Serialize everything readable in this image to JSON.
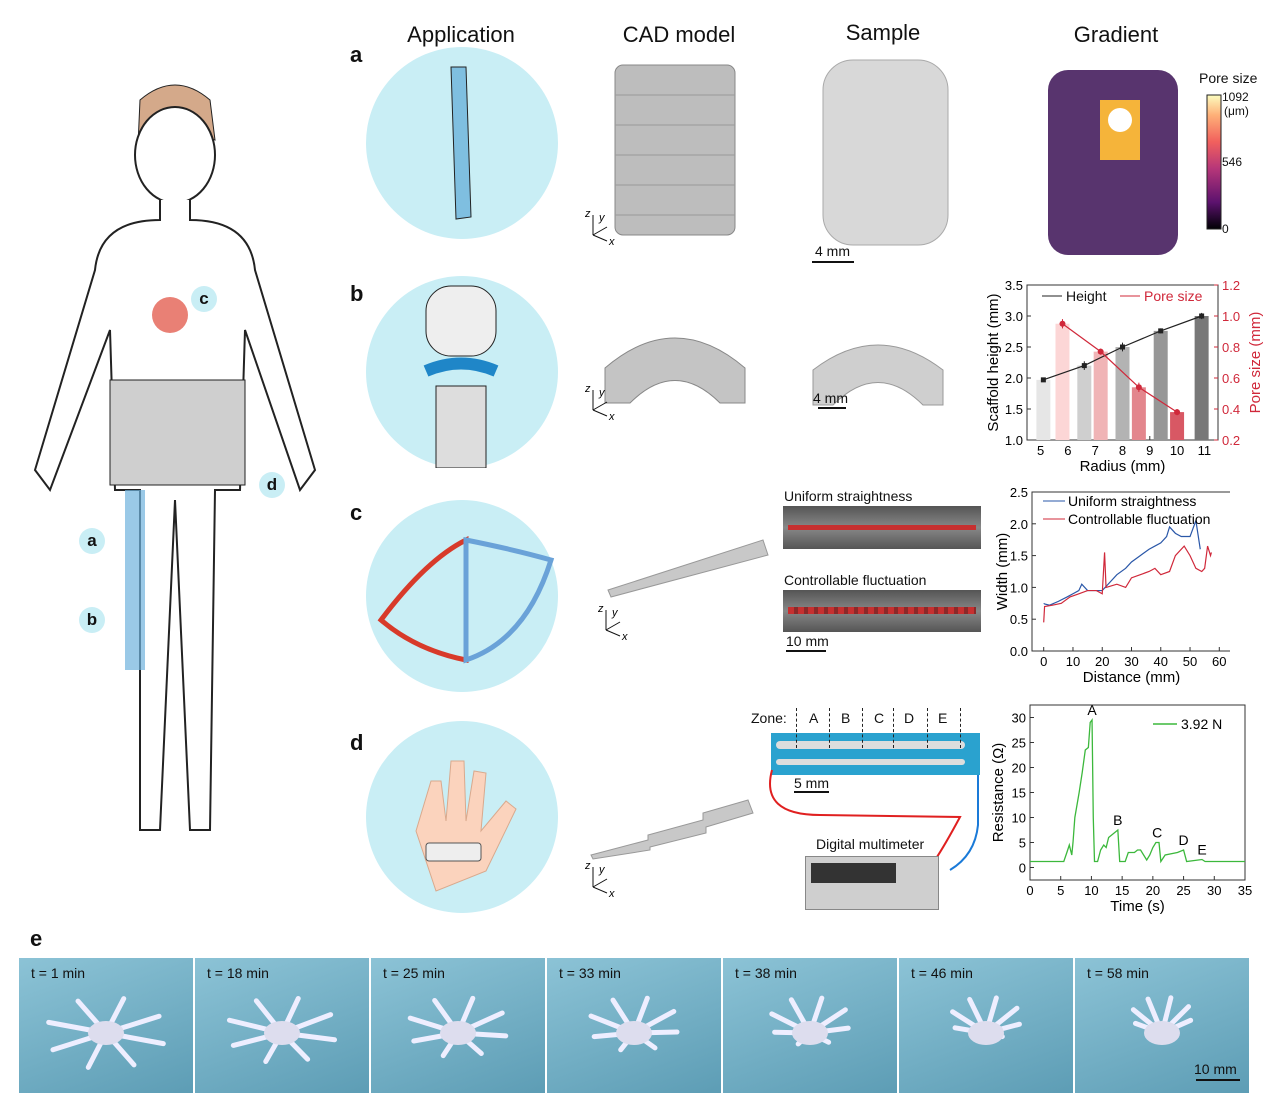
{
  "headers": {
    "application": "Application",
    "cad": "CAD model",
    "sample": "Sample",
    "gradient": "Gradient"
  },
  "panel_labels": {
    "a": "a",
    "b": "b",
    "c": "c",
    "d": "d",
    "e": "e"
  },
  "body_tags": {
    "a": "a",
    "b": "b",
    "c": "c",
    "d": "d"
  },
  "axes_triad": {
    "x": "x",
    "y": "y",
    "z": "z"
  },
  "scale_bars": {
    "a_sample": "4 mm",
    "b_sample": "4 mm",
    "c": "10 mm",
    "d": "5 mm",
    "e": "10 mm"
  },
  "colorbar": {
    "title": "Pore size",
    "max": "1092",
    "unit": "(μm)",
    "mid": "546",
    "min": "0",
    "colors": [
      "#000004",
      "#5c126e",
      "#b63679",
      "#f1605d",
      "#feb078",
      "#fcfdbf"
    ]
  },
  "panel_c": {
    "uniform_label": "Uniform straightness",
    "fluct_label": "Controllable fluctuation"
  },
  "panel_d": {
    "zone_label": "Zone:",
    "zones": [
      "A",
      "B",
      "C",
      "D",
      "E"
    ],
    "multimeter": "Digital multimeter"
  },
  "panel_e": {
    "frames": [
      "t = 1 min",
      "t = 18 min",
      "t = 25 min",
      "t = 33 min",
      "t = 38 min",
      "t = 46 min",
      "t = 58 min"
    ]
  },
  "chart_data": [
    {
      "type": "bar",
      "xlabel": "Radius (mm)",
      "ylabel": "Scaffold height (mm)",
      "ylabel_right": "Pore size (mm)",
      "xlim": [
        4.5,
        11.5
      ],
      "ylim": [
        1.0,
        3.5
      ],
      "ylim_right": [
        0.2,
        1.2
      ],
      "xticks": [
        "5",
        "6",
        "7",
        "8",
        "9",
        "10",
        "11"
      ],
      "yticks": [
        "1.0",
        "1.5",
        "2.0",
        "2.5",
        "3.0",
        "3.5"
      ],
      "yticks_right": [
        "0.2",
        "0.4",
        "0.6",
        "0.8",
        "1.0",
        "1.2"
      ],
      "legend_placement": "top",
      "series": [
        {
          "name": "Height",
          "axis": "left",
          "x": [
            5.1,
            6.6,
            8.0,
            9.4,
            10.9
          ],
          "values": [
            1.97,
            2.2,
            2.5,
            2.76,
            3.0
          ],
          "errors": [
            0.03,
            0.07,
            0.07,
            0.04,
            0.05
          ],
          "color": "#222222",
          "bar_colors": [
            "#e6e6e6",
            "#cfcfcf",
            "#b3b3b3",
            "#979797",
            "#787878"
          ]
        },
        {
          "name": "Pore size",
          "axis": "right",
          "x": [
            5.8,
            7.2,
            8.6,
            10.0
          ],
          "values": [
            0.95,
            0.77,
            0.54,
            0.38
          ],
          "errors": [
            0.03,
            0.02,
            0.03,
            0.02
          ],
          "color": "#d0283a",
          "bar_colors": [
            "#fcd6d6",
            "#f0b4b6",
            "#e3868d",
            "#d85864"
          ]
        }
      ]
    },
    {
      "type": "line",
      "xlabel": "Distance (mm)",
      "ylabel": "Width (mm)",
      "xlim": [
        -4,
        64
      ],
      "ylim": [
        0,
        2.5
      ],
      "xticks": [
        "0",
        "10",
        "20",
        "30",
        "40",
        "50",
        "60"
      ],
      "yticks": [
        "0.0",
        "0.5",
        "1.0",
        "1.5",
        "2.0",
        "2.5"
      ],
      "legend_placement": "top-left",
      "series": [
        {
          "name": "Uniform straightness",
          "color": "#2a57a8",
          "x": [
            0,
            0.3,
            2,
            5,
            8,
            10,
            12,
            13,
            15,
            18,
            20,
            22,
            25,
            28,
            30,
            33,
            36,
            38,
            40,
            42,
            43,
            45,
            47,
            50,
            52,
            53.5
          ],
          "y": [
            0.75,
            0.74,
            0.72,
            0.78,
            0.85,
            0.9,
            0.95,
            1.05,
            0.95,
            0.95,
            0.95,
            1.05,
            1.2,
            1.3,
            1.4,
            1.5,
            1.6,
            1.65,
            1.7,
            1.8,
            1.95,
            1.85,
            1.8,
            1.8,
            2.05,
            1.6
          ]
        },
        {
          "name": "Controllable fluctuation",
          "color": "#d0283a",
          "x": [
            0,
            0.3,
            3,
            6,
            9,
            12,
            15,
            18,
            20,
            20.8,
            21.3,
            25,
            28,
            30,
            33,
            36,
            38,
            40,
            43,
            45,
            48,
            50,
            52,
            54,
            55,
            56,
            57,
            57.3
          ],
          "y": [
            0.45,
            0.7,
            0.72,
            0.75,
            0.85,
            0.9,
            0.95,
            0.95,
            0.9,
            1.55,
            1.0,
            1.05,
            1.0,
            1.15,
            1.2,
            1.25,
            1.3,
            1.2,
            1.25,
            1.5,
            1.65,
            1.5,
            1.3,
            1.25,
            1.3,
            1.65,
            1.5,
            1.55
          ]
        }
      ]
    },
    {
      "type": "line",
      "xlabel": "Time (s)",
      "ylabel": "Resistance (Ω)",
      "xlim": [
        0,
        35
      ],
      "ylim": [
        -2.5,
        32.5
      ],
      "xticks": [
        "0",
        "5",
        "10",
        "15",
        "20",
        "25",
        "30",
        "35"
      ],
      "yticks": [
        "0",
        "5",
        "10",
        "15",
        "20",
        "25",
        "30"
      ],
      "legend_placement": "top-right",
      "annotations": [
        {
          "text": "A",
          "x": 10.1,
          "y": 29.5
        },
        {
          "text": "B",
          "x": 14.3,
          "y": 7.5
        },
        {
          "text": "C",
          "x": 20.7,
          "y": 5
        },
        {
          "text": "D",
          "x": 25,
          "y": 3.5
        },
        {
          "text": "E",
          "x": 28,
          "y": 1.6
        }
      ],
      "series": [
        {
          "name": "3.92 N",
          "color": "#3cb83c",
          "x": [
            0,
            5.5,
            6,
            6.4,
            6.8,
            7,
            7.3,
            8,
            8.5,
            9,
            9.5,
            9.8,
            10.1,
            10.3,
            10.5,
            11,
            11.5,
            12,
            12.4,
            12.8,
            14.3,
            14.6,
            15.5,
            16,
            17,
            17.5,
            18,
            19,
            19.5,
            20,
            20.5,
            21,
            21.3,
            22,
            24,
            25,
            25.5,
            28,
            28.5,
            35
          ],
          "y": [
            1.2,
            1.2,
            3,
            4.5,
            2.5,
            5,
            10,
            15,
            19,
            23.5,
            24,
            29,
            29.5,
            10,
            1.2,
            1.2,
            3.5,
            4.5,
            4,
            6,
            7.5,
            1.2,
            1.2,
            3,
            3,
            3.5,
            3.5,
            1.5,
            2.5,
            4,
            5,
            5,
            1.2,
            2.5,
            3,
            3.5,
            1.2,
            1.6,
            1.2,
            1.2
          ]
        }
      ]
    }
  ]
}
